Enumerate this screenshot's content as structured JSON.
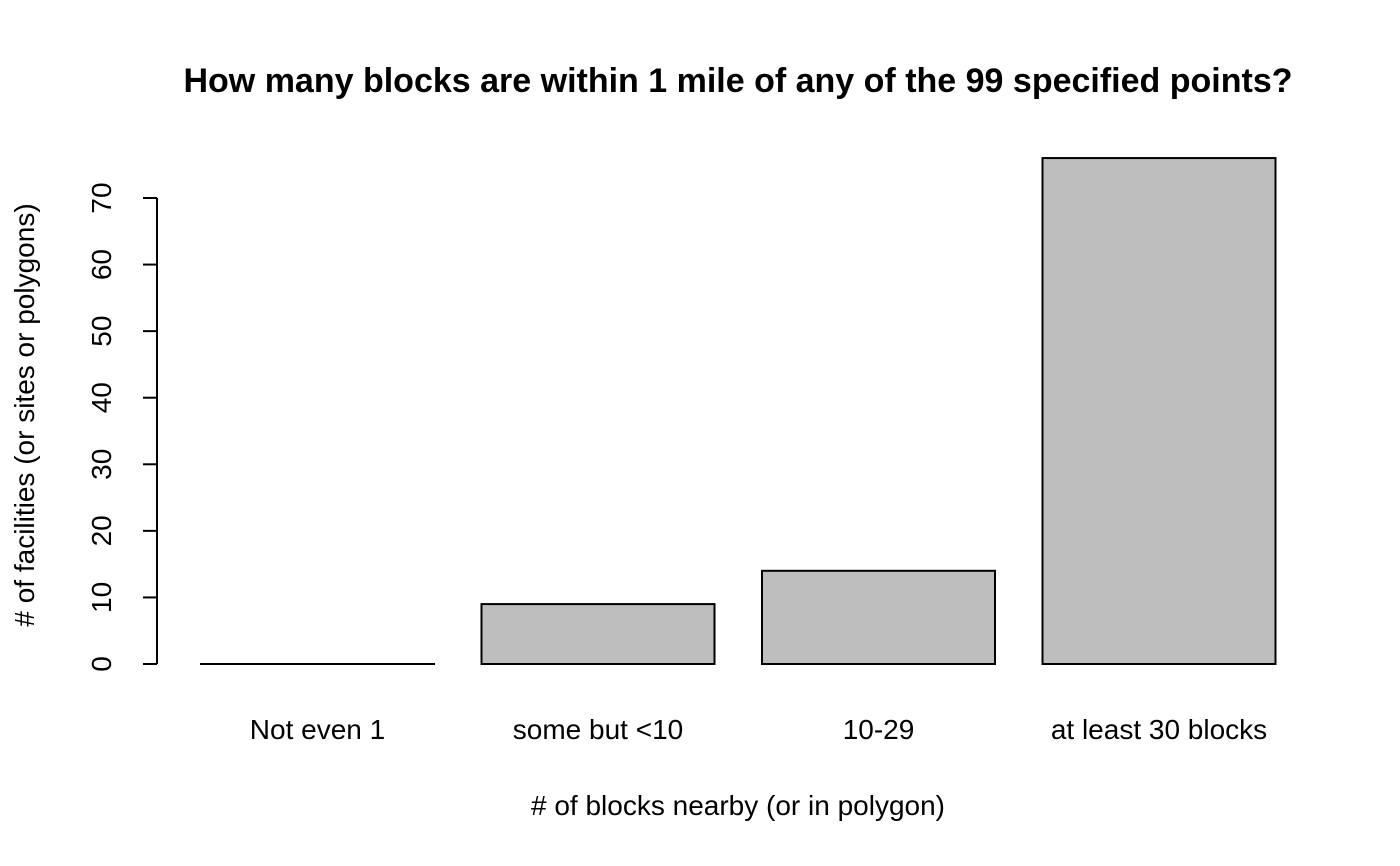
{
  "chart_data": {
    "type": "bar",
    "title": "How many blocks are within 1 mile of any of the 99 specified points?",
    "xlabel": "# of blocks nearby (or in polygon)",
    "ylabel": "# of facilities (or sites or polygons)",
    "categories": [
      "Not even 1",
      "some but <10",
      "10-29",
      "at least 30 blocks"
    ],
    "values": [
      0,
      9,
      14,
      76
    ],
    "yticks": [
      0,
      10,
      20,
      30,
      40,
      50,
      60,
      70
    ],
    "bar_color": "#bebebe",
    "grid": false,
    "legend": "none"
  }
}
